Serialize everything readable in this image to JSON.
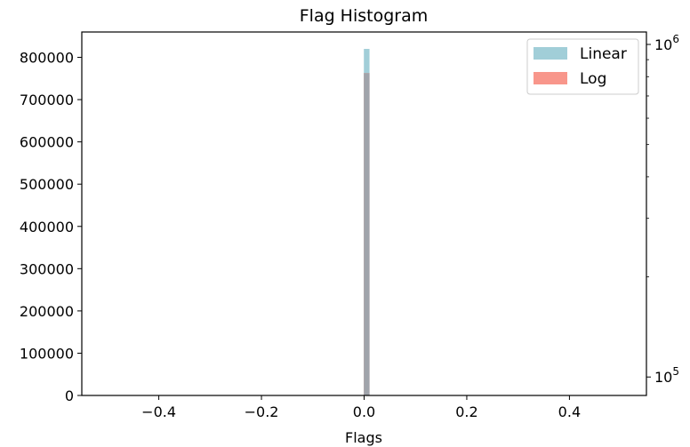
{
  "chart_data": {
    "type": "bar",
    "title": "Flag Histogram",
    "xlabel": "Flags",
    "ylabel": "",
    "xlim": [
      -0.55,
      0.55
    ],
    "ylim": [
      0,
      860000
    ],
    "x_ticks": [
      -0.4,
      -0.2,
      0.0,
      0.2,
      0.4
    ],
    "x_tick_labels": [
      "−0.4",
      "−0.2",
      "0.0",
      "0.2",
      "0.4"
    ],
    "y_ticks": [
      0,
      100000,
      200000,
      300000,
      400000,
      500000,
      600000,
      700000,
      800000
    ],
    "y_tick_labels": [
      "0",
      "100000",
      "200000",
      "300000",
      "400000",
      "500000",
      "600000",
      "700000",
      "800000"
    ],
    "right_axis": {
      "scale": "log",
      "ylim": [
        88000,
        1090000
      ],
      "major_ticks": [
        100000,
        1000000
      ],
      "major_tick_labels": [
        [
          "10",
          "5"
        ],
        [
          "10",
          "6"
        ]
      ],
      "minor_ticks": [
        200000,
        300000,
        400000,
        500000,
        600000,
        700000,
        800000,
        900000
      ]
    },
    "grid": false,
    "legend_position": "top-right",
    "series": [
      {
        "name": "Linear",
        "axis": "left",
        "color": "#a1ced8",
        "bins": [
          {
            "x0": -0.0005,
            "x1": 0.0105,
            "value": 820000
          }
        ]
      },
      {
        "name": "Log",
        "axis": "right",
        "color": "#f8968b",
        "bins": [
          {
            "x0": -0.0005,
            "x1": 0.0105,
            "value": 820000
          }
        ]
      }
    ],
    "overlap_color": "#a0a4ab"
  }
}
